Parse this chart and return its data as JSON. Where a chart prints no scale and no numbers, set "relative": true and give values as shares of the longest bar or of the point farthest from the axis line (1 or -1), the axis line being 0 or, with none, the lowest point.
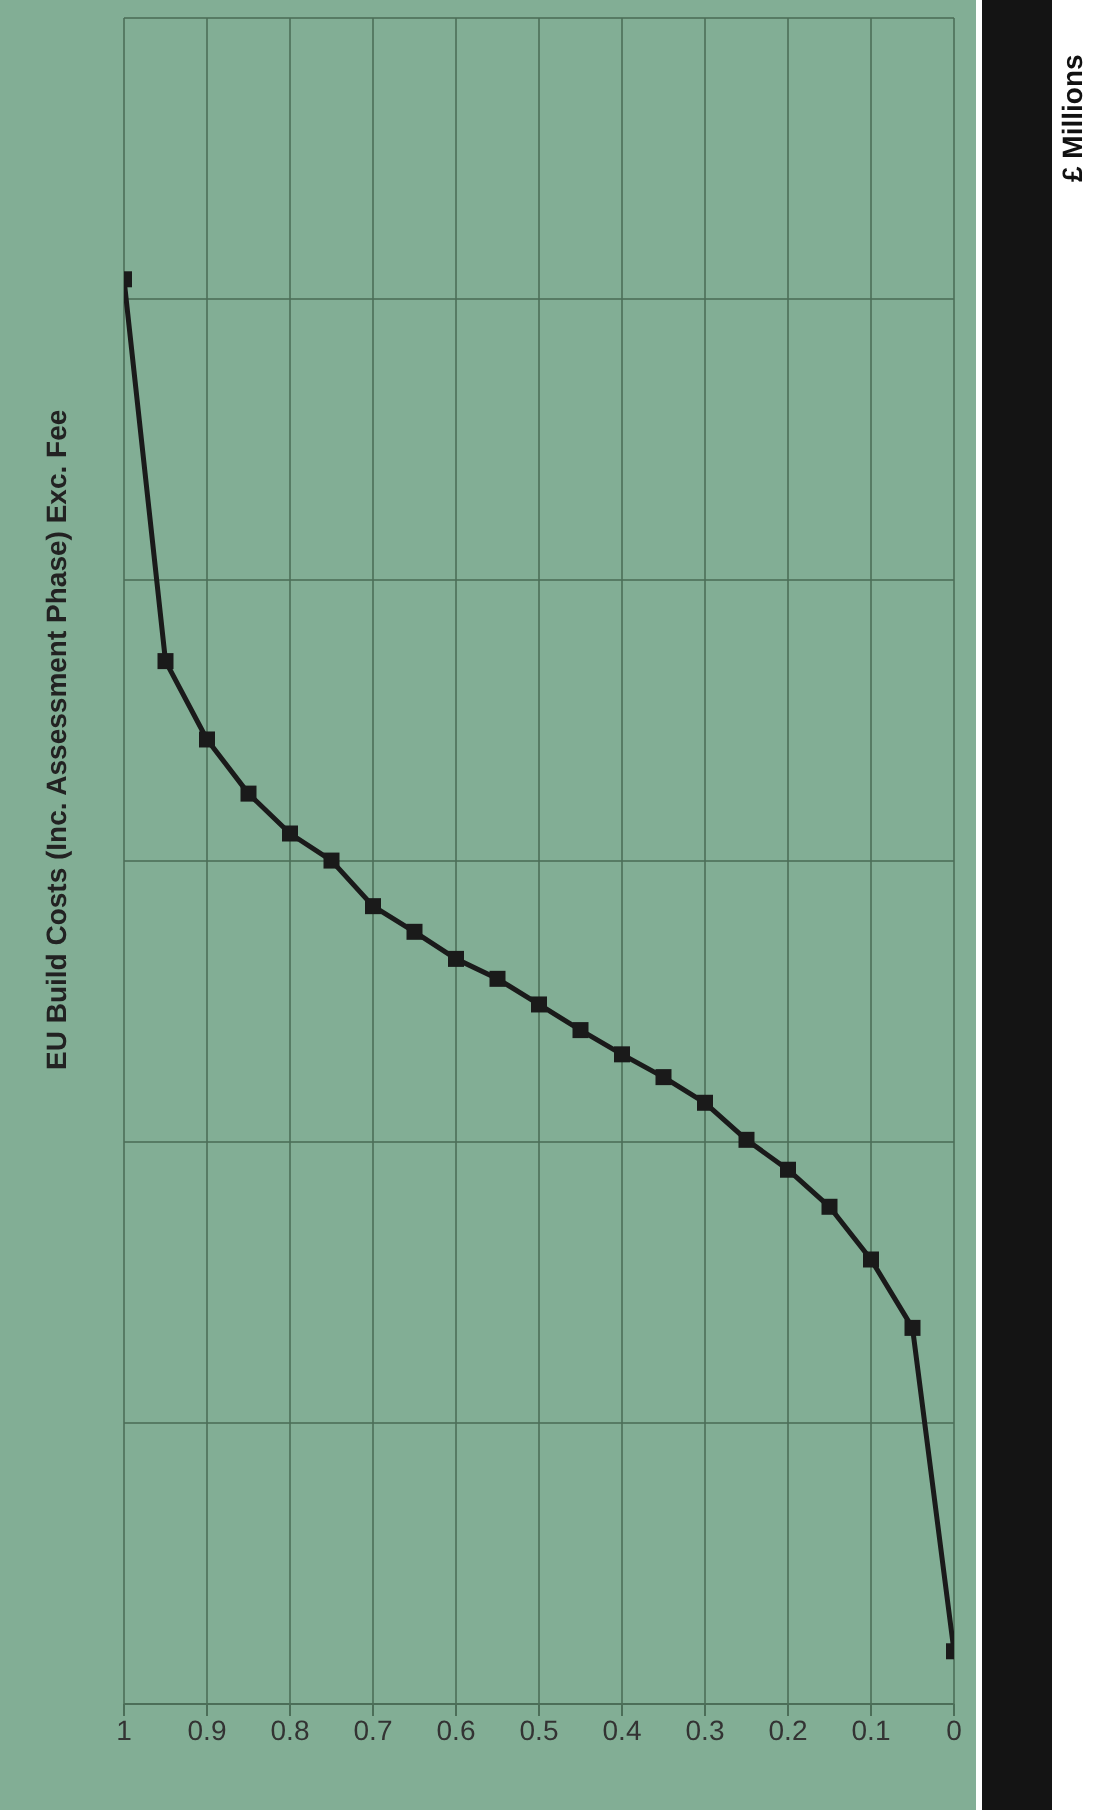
{
  "chart_data": {
    "type": "line",
    "title": "EU Build Costs (Inc. Assessment Phase) Exc. Fee",
    "ylabel": "£ Millions",
    "x": [
      0,
      0.05,
      0.1,
      0.15,
      0.2,
      0.25,
      0.3,
      0.35,
      0.4,
      0.45,
      0.5,
      0.55,
      0.6,
      0.65,
      0.7,
      0.75,
      0.8,
      0.85,
      0.9,
      0.95,
      1
    ],
    "series": [
      {
        "color": "#1a1a1a",
        "values": [
          0.037,
          0.264,
          0.312,
          0.349,
          0.375,
          0.396,
          0.422,
          0.44,
          0.456,
          0.473,
          0.491,
          0.509,
          0.523,
          0.542,
          0.56,
          0.592,
          0.611,
          0.639,
          0.677,
          0.732,
          1
        ]
      }
    ],
    "relative": true,
    "xlim": [
      1,
      0
    ],
    "xticks": [
      1,
      0.9,
      0.8,
      0.7,
      0.6,
      0.5,
      0.4,
      0.3,
      0.2,
      0.1,
      0
    ],
    "grid": true,
    "marker": "square",
    "line_style": "solid"
  }
}
